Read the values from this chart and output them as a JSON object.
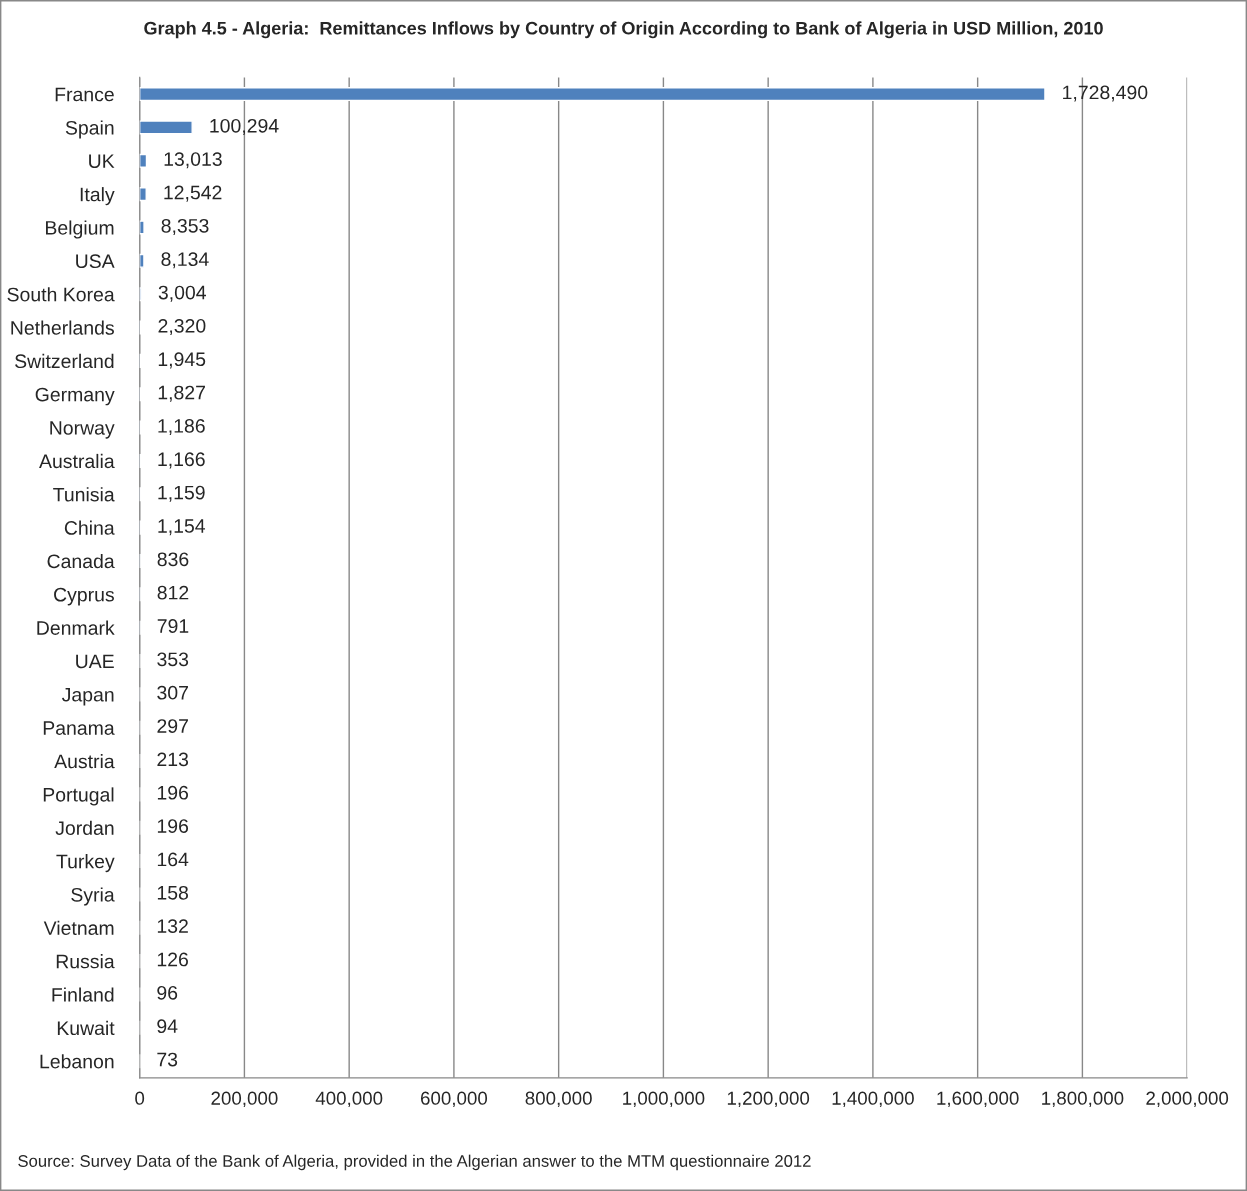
{
  "chart_data": {
    "type": "bar",
    "orientation": "horizontal",
    "title": "Graph 4.5 - Algeria:  Remittances Inflows by Country of Origin According to Bank of Algeria in USD Million, 2010",
    "categories": [
      "France",
      "Spain",
      "UK",
      "Italy",
      "Belgium",
      "USA",
      "South Korea",
      "Netherlands",
      "Switzerland",
      "Germany",
      "Norway",
      "Australia",
      "Tunisia",
      "China",
      "Canada",
      "Cyprus",
      "Denmark",
      "UAE",
      "Japan",
      "Panama",
      "Austria",
      "Portugal",
      "Jordan",
      "Turkey",
      "Syria",
      "Vietnam",
      "Russia",
      "Finland",
      "Kuwait",
      "Lebanon"
    ],
    "values": [
      1728490,
      100294,
      13013,
      12542,
      8353,
      8134,
      3004,
      2320,
      1945,
      1827,
      1186,
      1166,
      1159,
      1154,
      836,
      812,
      791,
      353,
      307,
      297,
      213,
      196,
      196,
      164,
      158,
      132,
      126,
      96,
      94,
      73
    ],
    "value_labels": [
      "1,728,490",
      "100,294",
      "13,013",
      "12,542",
      "8,353",
      "8,134",
      "3,004",
      "2,320",
      "1,945",
      "1,827",
      "1,186",
      "1,166",
      "1,159",
      "1,154",
      "836",
      "812",
      "791",
      "353",
      "307",
      "297",
      "213",
      "196",
      "196",
      "164",
      "158",
      "132",
      "126",
      "96",
      "94",
      "73"
    ],
    "color": "#4f81bd",
    "xlim": [
      0,
      2000000
    ],
    "xticks": [
      0,
      {
        "value": 200000,
        "label": "200,000"
      },
      {
        "value": 400000,
        "label": "400,000"
      },
      {
        "value": 600000,
        "label": "600,000"
      },
      {
        "value": 800000,
        "label": "800,000"
      },
      {
        "value": 1000000,
        "label": "1,000,000"
      },
      {
        "value": 1200000,
        "label": "1,200,000"
      },
      {
        "value": 1400000,
        "label": "1,400,000"
      },
      {
        "value": 1600000,
        "label": "1,600,000"
      },
      {
        "value": 1800000,
        "label": "1,800,000"
      },
      {
        "value": 2000000,
        "label": "2,000,000"
      }
    ],
    "grid": "x",
    "annotations": [
      "Source: Survey Data of the Bank of Algeria, provided in the Algerian answer to the MTM questionnaire 2012"
    ]
  }
}
